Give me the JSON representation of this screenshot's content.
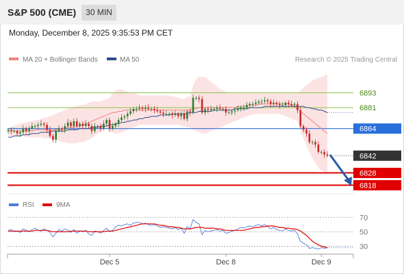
{
  "header": {
    "title": "S&P 500 (CME)",
    "timeframe": "30 MIN"
  },
  "date_line": "Monday, December 8, 2025 9:35:53 PM CET",
  "legend": {
    "bollinger": "MA 20 + Bollinger Bands",
    "ma50": "MA 50",
    "credit": "Research © 2025 Trading Central"
  },
  "rsi_legend": {
    "rsi": "RSI",
    "ma9": "9MA"
  },
  "colors": {
    "up": "#2e7d32",
    "down": "#c62828",
    "bollinger": "#f08080",
    "ma50": "#2c4a8c",
    "pivot": "#2a6fdb",
    "support": "#e00000",
    "last": "#333333",
    "resistance": "#8bc34a",
    "rsi": "#4f7bd6",
    "rsi_ma": "#e00000",
    "arrow": "#2a5aa8"
  },
  "chart_data": [
    {
      "type": "candlestick",
      "title": "S&P 500 (CME)",
      "x_ticks": [
        "Dec 5",
        "Dec 8",
        "Dec 9"
      ],
      "ylim": [
        6811,
        6915
      ],
      "levels": [
        {
          "label": "6893",
          "value": 6893,
          "kind": "resistance"
        },
        {
          "label": "6881",
          "value": 6881,
          "kind": "resistance"
        },
        {
          "label": "6864",
          "value": 6864,
          "kind": "pivot"
        },
        {
          "label": "6842",
          "value": 6842,
          "kind": "last"
        },
        {
          "label": "6828",
          "value": 6828,
          "kind": "support"
        },
        {
          "label": "6818",
          "value": 6818,
          "kind": "support"
        }
      ],
      "close": [
        6863,
        6862,
        6862,
        6860,
        6861,
        6864,
        6862,
        6864,
        6866,
        6866,
        6867,
        6868,
        6867,
        6863,
        6858,
        6855,
        6862,
        6864,
        6863,
        6866,
        6869,
        6866,
        6870,
        6866,
        6868,
        6866,
        6868,
        6866,
        6862,
        6866,
        6866,
        6864,
        6868,
        6871,
        6864,
        6866,
        6868,
        6871,
        6873,
        6874,
        6876,
        6878,
        6880,
        6880,
        6881,
        6880,
        6881,
        6880,
        6880,
        6879,
        6878,
        6877,
        6876,
        6876,
        6876,
        6875,
        6876,
        6874,
        6876,
        6872,
        6878,
        6877,
        6889,
        6889,
        6888,
        6877,
        6880,
        6879,
        6880,
        6880,
        6881,
        6880,
        6880,
        6877,
        6877,
        6878,
        6879,
        6880,
        6881,
        6881,
        6883,
        6884,
        6884,
        6885,
        6886,
        6886,
        6887,
        6886,
        6884,
        6885,
        6884,
        6883,
        6883,
        6885,
        6884,
        6883,
        6884,
        6879,
        6866,
        6863,
        6860,
        6853,
        6853,
        6851,
        6845,
        6845,
        6843,
        6842
      ],
      "bollinger": {
        "upper": [
          6864,
          6865,
          6866,
          6867,
          6868,
          6869,
          6869,
          6870,
          6870,
          6871,
          6871,
          6872,
          6873,
          6873,
          6874,
          6875,
          6876,
          6877,
          6878,
          6879,
          6880,
          6881,
          6882,
          6882,
          6883,
          6883,
          6884,
          6885,
          6886,
          6886,
          6886,
          6886,
          6887,
          6888,
          6889,
          6893,
          6895,
          6896,
          6896,
          6895,
          6894,
          6893,
          6893,
          6892,
          6891,
          6891,
          6891,
          6891,
          6891,
          6891,
          6891,
          6891,
          6891,
          6891,
          6891,
          6890,
          6890,
          6889,
          6888,
          6888,
          6890,
          6890,
          6899,
          6904,
          6906,
          6906,
          6906,
          6904,
          6902,
          6900,
          6898,
          6896,
          6895,
          6894,
          6893,
          6893,
          6893,
          6893,
          6893,
          6893,
          6893,
          6893,
          6893,
          6893,
          6893,
          6893,
          6893,
          6893,
          6893,
          6893,
          6893,
          6893,
          6893,
          6893,
          6893,
          6893,
          6893,
          6893,
          6895,
          6897,
          6899,
          6901,
          6903,
          6904,
          6905,
          6906,
          6907,
          6908
        ],
        "middle": [
          6862,
          6862,
          6862,
          6862,
          6862,
          6862,
          6862,
          6862,
          6862,
          6863,
          6863,
          6863,
          6863,
          6863,
          6863,
          6863,
          6863,
          6864,
          6864,
          6864,
          6865,
          6865,
          6865,
          6866,
          6866,
          6867,
          6868,
          6869,
          6870,
          6871,
          6872,
          6873,
          6874,
          6875,
          6876,
          6877,
          6877,
          6878,
          6878,
          6879,
          6879,
          6879,
          6879,
          6879,
          6879,
          6879,
          6879,
          6879,
          6879,
          6879,
          6879,
          6879,
          6879,
          6879,
          6879,
          6879,
          6879,
          6879,
          6879,
          6879,
          6879,
          6879,
          6880,
          6880,
          6881,
          6881,
          6881,
          6881,
          6881,
          6881,
          6881,
          6881,
          6881,
          6881,
          6881,
          6881,
          6881,
          6882,
          6882,
          6882,
          6883,
          6883,
          6883,
          6883,
          6884,
          6884,
          6884,
          6884,
          6884,
          6884,
          6884,
          6884,
          6884,
          6884,
          6884,
          6883,
          6882,
          6880,
          6878,
          6876,
          6874,
          6872,
          6870,
          6868,
          6866,
          6864,
          6862,
          6860
        ],
        "lower": [
          6858,
          6858,
          6858,
          6858,
          6858,
          6858,
          6857,
          6857,
          6857,
          6857,
          6857,
          6857,
          6856,
          6856,
          6856,
          6856,
          6855,
          6854,
          6853,
          6853,
          6852,
          6852,
          6852,
          6852,
          6853,
          6853,
          6854,
          6855,
          6856,
          6858,
          6860,
          6862,
          6864,
          6864,
          6862,
          6861,
          6860,
          6860,
          6861,
          6862,
          6863,
          6864,
          6865,
          6866,
          6867,
          6867,
          6867,
          6867,
          6867,
          6867,
          6867,
          6867,
          6867,
          6867,
          6867,
          6867,
          6867,
          6867,
          6866,
          6866,
          6865,
          6865,
          6863,
          6862,
          6861,
          6860,
          6860,
          6861,
          6862,
          6863,
          6864,
          6865,
          6866,
          6867,
          6868,
          6869,
          6870,
          6871,
          6872,
          6873,
          6874,
          6875,
          6875,
          6876,
          6876,
          6876,
          6876,
          6876,
          6876,
          6876,
          6876,
          6876,
          6875,
          6874,
          6873,
          6872,
          6871,
          6870,
          6862,
          6856,
          6850,
          6845,
          6840,
          6836,
          6832,
          6830,
          6829,
          6828
        ]
      },
      "ma50": [
        6857,
        6857,
        6858,
        6858,
        6858,
        6859,
        6859,
        6859,
        6860,
        6860,
        6860,
        6861,
        6861,
        6861,
        6861,
        6862,
        6862,
        6862,
        6862,
        6862,
        6863,
        6863,
        6863,
        6863,
        6864,
        6864,
        6864,
        6864,
        6865,
        6865,
        6865,
        6866,
        6866,
        6866,
        6867,
        6867,
        6868,
        6868,
        6869,
        6869,
        6870,
        6870,
        6871,
        6871,
        6872,
        6872,
        6873,
        6873,
        6874,
        6874,
        6874,
        6875,
        6875,
        6875,
        6875,
        6876,
        6876,
        6876,
        6876,
        6876,
        6876,
        6877,
        6877,
        6877,
        6878,
        6878,
        6878,
        6878,
        6878,
        6879,
        6879,
        6879,
        6879,
        6879,
        6879,
        6879,
        6880,
        6880,
        6880,
        6880,
        6880,
        6881,
        6881,
        6881,
        6881,
        6881,
        6882,
        6882,
        6882,
        6882,
        6882,
        6882,
        6882,
        6882,
        6882,
        6882,
        6882,
        6882,
        6882,
        6882,
        6881,
        6881,
        6880,
        6880,
        6879,
        6879,
        6878,
        6877
      ]
    },
    {
      "type": "line",
      "title": "RSI",
      "ylim": [
        20,
        75
      ],
      "y_ticks": [
        70,
        50,
        30
      ],
      "series": [
        {
          "name": "RSI",
          "values": [
            52,
            53,
            50,
            51,
            49,
            54,
            52,
            50,
            53,
            55,
            52,
            51,
            54,
            52,
            49,
            43,
            48,
            53,
            51,
            54,
            52,
            49,
            53,
            48,
            51,
            50,
            52,
            47,
            45,
            51,
            50,
            48,
            52,
            55,
            50,
            52,
            57,
            59,
            58,
            60,
            61,
            59,
            62,
            63,
            63,
            61,
            62,
            60,
            59,
            60,
            58,
            56,
            57,
            56,
            55,
            54,
            56,
            53,
            55,
            48,
            57,
            54,
            67,
            63,
            61,
            46,
            52,
            50,
            51,
            52,
            53,
            51,
            52,
            48,
            49,
            51,
            52,
            54,
            56,
            55,
            57,
            58,
            57,
            59,
            60,
            58,
            60,
            57,
            54,
            56,
            53,
            52,
            51,
            54,
            52,
            51,
            52,
            47,
            37,
            34,
            32,
            27,
            28,
            27,
            26,
            28,
            27,
            28
          ]
        },
        {
          "name": "9MA",
          "values": [
            51,
            51,
            51,
            51,
            51,
            51,
            51,
            51,
            51,
            52,
            52,
            52,
            52,
            52,
            51,
            50,
            50,
            50,
            50,
            50,
            50,
            51,
            51,
            51,
            51,
            51,
            51,
            50,
            50,
            50,
            50,
            50,
            50,
            51,
            51,
            51,
            52,
            53,
            54,
            55,
            56,
            57,
            58,
            59,
            60,
            61,
            61,
            61,
            61,
            61,
            60,
            59,
            59,
            58,
            57,
            57,
            56,
            56,
            55,
            54,
            54,
            54,
            55,
            56,
            56,
            56,
            55,
            55,
            55,
            55,
            54,
            54,
            53,
            52,
            52,
            52,
            52,
            52,
            52,
            52,
            53,
            54,
            55,
            56,
            56,
            57,
            57,
            58,
            58,
            58,
            57,
            56,
            56,
            55,
            55,
            54,
            54,
            53,
            51,
            48,
            45,
            41,
            37,
            34,
            32,
            30,
            29,
            28
          ]
        }
      ]
    }
  ]
}
